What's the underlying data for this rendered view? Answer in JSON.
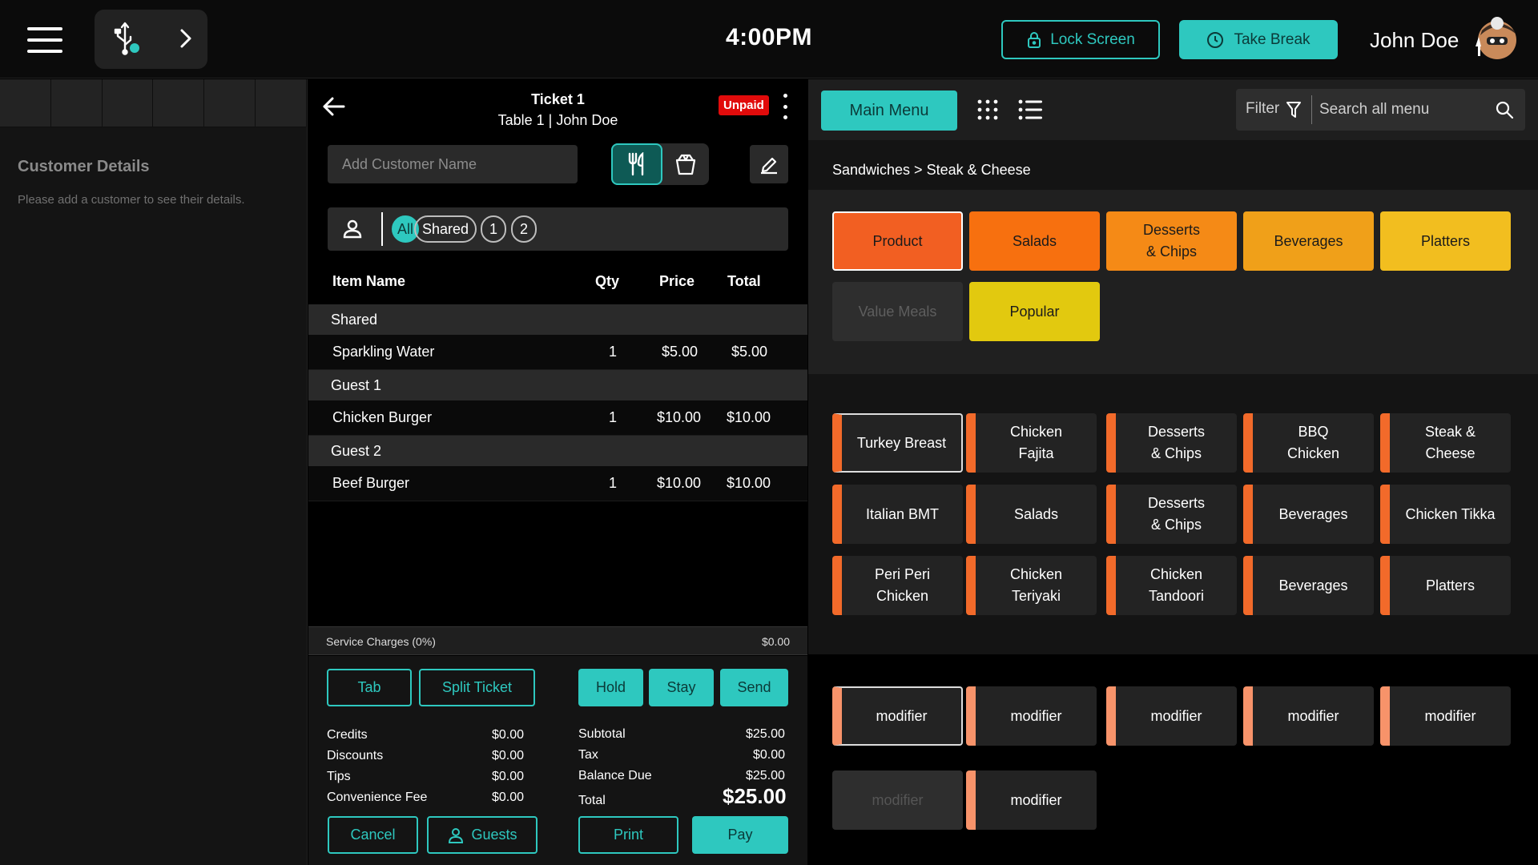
{
  "topbar": {
    "time": "4:00PM",
    "lock_label": "Lock Screen",
    "break_label": "Take Break",
    "user_name": "John Doe"
  },
  "customer": {
    "title": "Customer Details",
    "subtitle": "Please add a customer to see their details."
  },
  "ticket": {
    "title": "Ticket 1",
    "subtitle": "Table 1 | John Doe",
    "status": "Unpaid",
    "customer_placeholder": "Add Customer Name",
    "guest_filters": [
      "All",
      "Shared",
      "1",
      "2"
    ],
    "columns": {
      "name": "Item Name",
      "qty": "Qty",
      "price": "Price",
      "total": "Total"
    },
    "groups": [
      {
        "label": "Shared",
        "items": [
          {
            "name": "Sparkling Water",
            "qty": "1",
            "price": "$5.00",
            "total": "$5.00"
          }
        ]
      },
      {
        "label": "Guest 1",
        "items": [
          {
            "name": "Chicken Burger",
            "qty": "1",
            "price": "$10.00",
            "total": "$10.00"
          }
        ]
      },
      {
        "label": "Guest 2",
        "items": [
          {
            "name": "Beef Burger",
            "qty": "1",
            "price": "$10.00",
            "total": "$10.00"
          }
        ]
      }
    ],
    "service_charges_label": "Service Charges (0%)",
    "service_charges_value": "$0.00",
    "buttons": {
      "tab": "Tab",
      "split": "Split Ticket",
      "hold": "Hold",
      "stay": "Stay",
      "send": "Send",
      "cancel": "Cancel",
      "guests": "Guests",
      "print": "Print",
      "pay": "Pay"
    },
    "left_summary": [
      {
        "label": "Credits",
        "value": "$0.00"
      },
      {
        "label": "Discounts",
        "value": "$0.00"
      },
      {
        "label": "Tips",
        "value": "$0.00"
      },
      {
        "label": "Convenience Fee",
        "value": "$0.00"
      }
    ],
    "right_summary": [
      {
        "label": "Subtotal",
        "value": "$25.00"
      },
      {
        "label": "Tax",
        "value": "$0.00"
      },
      {
        "label": "Balance Due",
        "value": "$25.00"
      }
    ],
    "total_label": "Total",
    "total_value": "$25.00"
  },
  "menu": {
    "main_menu_label": "Main Menu",
    "filter_label": "Filter",
    "search_placeholder": "Search all menu",
    "breadcrumb": "Sandwiches > Steak & Cheese",
    "categories": [
      {
        "label": "Product",
        "color": "#f25f22"
      },
      {
        "label": "Salads",
        "color": "#f7700f"
      },
      {
        "label": "Desserts\n& Chips",
        "color": "#f58a16"
      },
      {
        "label": "Beverages",
        "color": "#f0a019"
      },
      {
        "label": "Platters",
        "color": "#f2be1f"
      },
      {
        "label": "Value Meals",
        "color": "#2e2e2e"
      },
      {
        "label": "Popular",
        "color": "#e2c90f"
      }
    ],
    "products": [
      "Turkey Breast",
      "Chicken\nFajita",
      "Desserts\n& Chips",
      "BBQ\nChicken",
      "Steak &\nCheese",
      "Italian BMT",
      "Salads",
      "Desserts\n& Chips",
      "Beverages",
      "Chicken Tikka",
      "Peri Peri\nChicken",
      "Chicken\nTeriyaki",
      "Chicken\nTandoori",
      "Beverages",
      "Platters"
    ],
    "modifiers": [
      "modifier",
      "modifier",
      "modifier",
      "modifier",
      "modifier",
      "modifier",
      "modifier"
    ],
    "accent": "#2ec8bf",
    "product_bar_color": "#f26a2a",
    "modifier_bar_color": "#f7936a"
  }
}
